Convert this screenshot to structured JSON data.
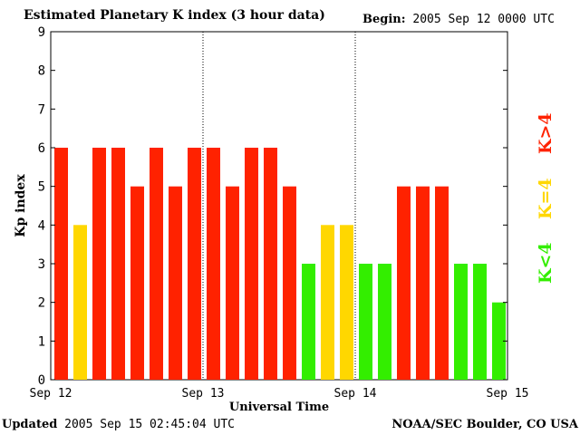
{
  "header": {
    "title": "Estimated Planetary K index (3 hour data)",
    "begin_label": "Begin:",
    "begin_value": "2005 Sep 12 0000 UTC"
  },
  "footer": {
    "updated_label": "Updated",
    "updated_value": "2005 Sep 15 02:45:04 UTC",
    "credit": "NOAA/SEC Boulder, CO USA"
  },
  "legend": [
    {
      "label": "K<4",
      "color": "#33ee00"
    },
    {
      "label": "K=4",
      "color": "#ffd700"
    },
    {
      "label": "K>4",
      "color": "#ff2200"
    }
  ],
  "chart_data": {
    "type": "bar",
    "title": "Estimated Planetary K index (3 hour data)",
    "xlabel": "Universal Time",
    "ylabel": "Kp index",
    "ylim": [
      0,
      9
    ],
    "yticks": [
      "0",
      "1",
      "2",
      "3",
      "4",
      "5",
      "6",
      "7",
      "8",
      "9"
    ],
    "xticks": [
      "Sep 12",
      "Sep 13",
      "Sep 14",
      "Sep 15"
    ],
    "values": [
      6,
      4,
      6,
      6,
      5,
      6,
      5,
      6,
      6,
      5,
      6,
      6,
      5,
      3,
      4,
      4,
      3,
      3,
      5,
      5,
      5,
      3,
      3,
      2
    ],
    "colors": {
      "low": "#33ee00",
      "mid": "#ffd700",
      "high": "#ff2200"
    },
    "grid": false,
    "legend_position": "right"
  }
}
